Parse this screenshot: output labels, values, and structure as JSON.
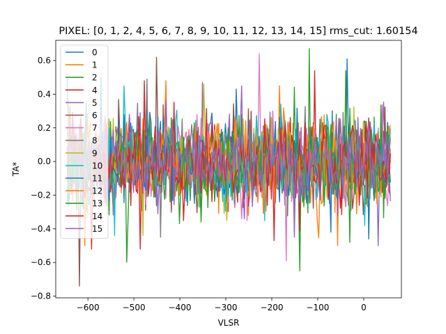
{
  "chart_data": {
    "type": "line",
    "title": "PIXEL: [0, 1, 2, 4, 5, 6, 7, 8, 9, 10, 11, 12, 13, 14, 15]   rms_cut: 1.60154",
    "xlabel": "VLSR",
    "ylabel": "TA*",
    "xlim": [
      -670,
      82
    ],
    "ylim": [
      -0.81,
      0.72
    ],
    "x_range": [
      -645,
      58
    ],
    "n_points": 240,
    "seed": 7,
    "x_ticks": [
      -600,
      -500,
      -400,
      -300,
      -200,
      -100,
      0
    ],
    "x_tick_labels": [
      "−600",
      "−500",
      "−400",
      "−300",
      "−200",
      "−100",
      "0"
    ],
    "y_ticks": [
      -0.8,
      -0.6,
      -0.4,
      -0.2,
      0.0,
      0.2,
      0.4,
      0.6
    ],
    "y_tick_labels": [
      "−0.8",
      "−0.6",
      "−0.4",
      "−0.2",
      "0.0",
      "0.2",
      "0.4",
      "0.6"
    ],
    "legend_position": "upper-left",
    "grid": false,
    "series": [
      {
        "name": "0",
        "color": "#1f77b4",
        "sigma": 0.13,
        "min": -0.42,
        "max": 0.61
      },
      {
        "name": "1",
        "color": "#ff7f0e",
        "sigma": 0.13,
        "min": -0.5,
        "max": 0.45
      },
      {
        "name": "2",
        "color": "#2ca02c",
        "sigma": 0.14,
        "min": -0.65,
        "max": 0.67
      },
      {
        "name": "4",
        "color": "#d62728",
        "sigma": 0.13,
        "min": -0.52,
        "max": 0.54
      },
      {
        "name": "5",
        "color": "#9467bd",
        "sigma": 0.13,
        "min": -0.5,
        "max": 0.47
      },
      {
        "name": "6",
        "color": "#8c564b",
        "sigma": 0.13,
        "min": -0.74,
        "max": 0.62
      },
      {
        "name": "7",
        "color": "#e377c2",
        "sigma": 0.13,
        "min": -0.59,
        "max": 0.64
      },
      {
        "name": "8",
        "color": "#7f7f7f",
        "sigma": 0.12,
        "min": -0.45,
        "max": 0.49
      },
      {
        "name": "9",
        "color": "#bcbd22",
        "sigma": 0.12,
        "min": -0.44,
        "max": 0.46
      },
      {
        "name": "10",
        "color": "#17becf",
        "sigma": 0.12,
        "min": -0.44,
        "max": 0.45
      },
      {
        "name": "11",
        "color": "#1f77b4",
        "sigma": 0.12,
        "min": -0.46,
        "max": 0.5
      },
      {
        "name": "12",
        "color": "#ff7f0e",
        "sigma": 0.12,
        "min": -0.5,
        "max": 0.48
      },
      {
        "name": "13",
        "color": "#2ca02c",
        "sigma": 0.12,
        "min": -0.48,
        "max": 0.54
      },
      {
        "name": "14",
        "color": "#d62728",
        "sigma": 0.12,
        "min": -0.47,
        "max": 0.48
      },
      {
        "name": "15",
        "color": "#9467bd",
        "sigma": 0.11,
        "min": -0.45,
        "max": 0.45
      }
    ]
  }
}
